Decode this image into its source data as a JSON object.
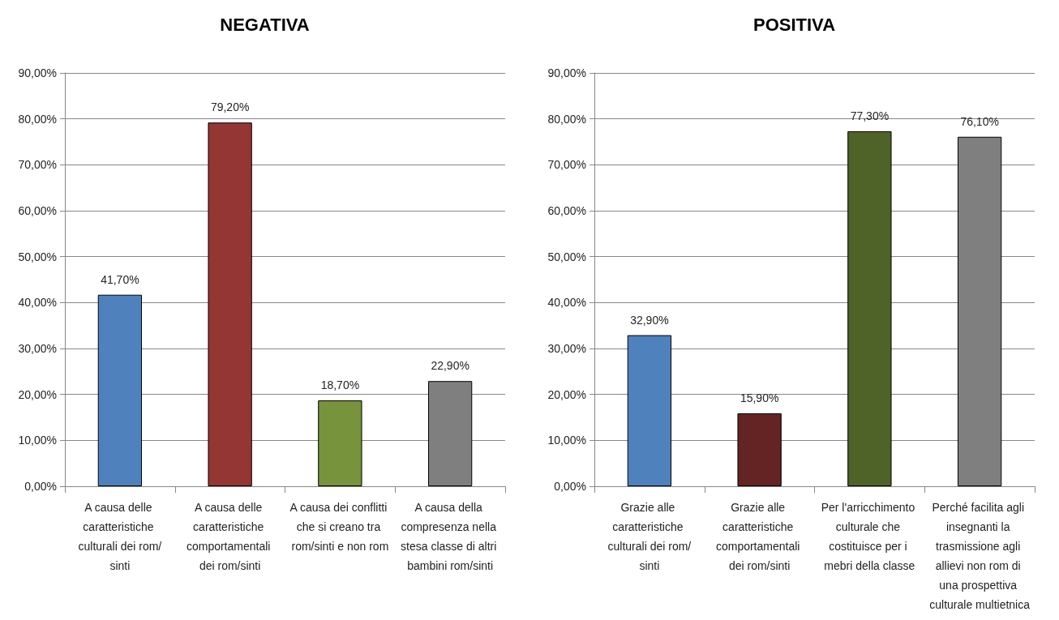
{
  "chart_data": [
    {
      "type": "bar",
      "title": "NEGATIVA",
      "categories": [
        "A causa delle caratteristiche culturali dei rom/sinti",
        "A causa delle caratteristiche comportamentali dei rom/sinti",
        "A causa dei conflitti che si creano tra rom/sinti e non rom",
        "A causa della compresenza nella stesa classe di altri bambini rom/sinti"
      ],
      "values": [
        41.7,
        79.2,
        18.7,
        22.9
      ],
      "value_labels": [
        "41,70%",
        "79,20%",
        "18,70%",
        "22,90%"
      ],
      "colors": [
        "#4f81bd",
        "#943634",
        "#77933c",
        "#7f7f7f"
      ],
      "ylim": [
        0,
        90
      ],
      "yticks": [
        {
          "value": 0,
          "label": "0,00%"
        },
        {
          "value": 10,
          "label": "10,00%"
        },
        {
          "value": 20,
          "label": "20,00%"
        },
        {
          "value": 30,
          "label": "30,00%"
        },
        {
          "value": 40,
          "label": "40,00%"
        },
        {
          "value": 50,
          "label": "50,00%"
        },
        {
          "value": 60,
          "label": "60,00%"
        },
        {
          "value": 70,
          "label": "70,00%"
        },
        {
          "value": 80,
          "label": "80,00%"
        },
        {
          "value": 90,
          "label": "90,00%"
        }
      ],
      "grid": "y"
    },
    {
      "type": "bar",
      "title": "POSITIVA",
      "categories": [
        "Grazie alle caratteristiche culturali dei rom/sinti",
        "Grazie alle caratteristiche comportamentali dei rom/sinti",
        "Per l'arricchimento culturale che costituisce per i mebri della classe",
        "Perché facilita agli insegnanti la trasmissione agli allievi non rom di una prospettiva culturale multietnica"
      ],
      "values": [
        32.9,
        15.9,
        77.3,
        76.1
      ],
      "value_labels": [
        "32,90%",
        "15,90%",
        "77,30%",
        "76,10%"
      ],
      "colors": [
        "#4f81bd",
        "#632423",
        "#4f6228",
        "#7f7f7f"
      ],
      "ylim": [
        0,
        90
      ],
      "yticks": [
        {
          "value": 0,
          "label": "0,00%"
        },
        {
          "value": 10,
          "label": "10,00%"
        },
        {
          "value": 20,
          "label": "20,00%"
        },
        {
          "value": 30,
          "label": "30,00%"
        },
        {
          "value": 40,
          "label": "40,00%"
        },
        {
          "value": 50,
          "label": "50,00%"
        },
        {
          "value": 60,
          "label": "60,00%"
        },
        {
          "value": 70,
          "label": "70,00%"
        },
        {
          "value": 80,
          "label": "80,00%"
        },
        {
          "value": 90,
          "label": "90,00%"
        }
      ],
      "grid": "y"
    }
  ]
}
